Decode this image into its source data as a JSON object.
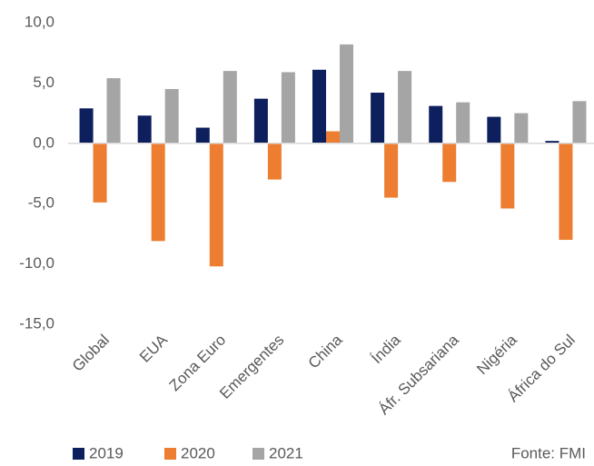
{
  "chart_data": {
    "type": "bar",
    "categories": [
      "Global",
      "EUA",
      "Zona Euro",
      "Emergentes",
      "China",
      "Índia",
      "Áfr. Subsariana",
      "Nigéria",
      "África do Sul"
    ],
    "series": [
      {
        "name": "2019",
        "color": "#0d1f5c",
        "values": [
          2.9,
          2.3,
          1.3,
          3.7,
          6.1,
          4.2,
          3.1,
          2.2,
          0.2
        ]
      },
      {
        "name": "2020",
        "color": "#ed7d31",
        "values": [
          -4.9,
          -8.1,
          -10.2,
          -3.0,
          1.0,
          -4.5,
          -3.2,
          -5.4,
          -8.0
        ]
      },
      {
        "name": "2021",
        "color": "#a5a5a5",
        "values": [
          5.4,
          4.5,
          6.0,
          5.9,
          8.2,
          6.0,
          3.4,
          2.5,
          3.5
        ]
      }
    ],
    "ylim": [
      -15,
      10
    ],
    "yticks": [
      {
        "value": 10,
        "label": "10,0"
      },
      {
        "value": 5,
        "label": "5,0"
      },
      {
        "value": 0,
        "label": "0,0"
      },
      {
        "value": -5,
        "label": "-5,0"
      },
      {
        "value": -10,
        "label": "-10,0"
      },
      {
        "value": -15,
        "label": "-15,0"
      }
    ],
    "grid": false,
    "legend": "bottom",
    "annotation": "Fonte: FMI"
  }
}
